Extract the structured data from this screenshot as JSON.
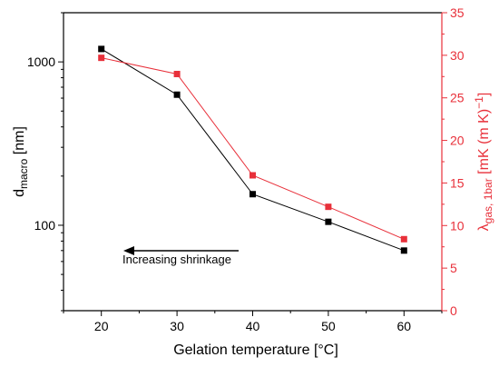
{
  "chart_data": {
    "type": "line",
    "x": [
      20,
      30,
      40,
      50,
      60
    ],
    "xlabel": "Gelation temperature [°C]",
    "xlim": [
      15,
      65
    ],
    "xticks": [
      20,
      30,
      40,
      50,
      60
    ],
    "ylabel_left": {
      "main": "d",
      "sub": "macro",
      "unit": " [nm]"
    },
    "ylim_left": [
      30,
      2000
    ],
    "yscale_left": "log",
    "yticks_left": [
      100,
      1000
    ],
    "ylabel_right": {
      "main": "λ",
      "sub": "gas, 1bar",
      "unit": " [mK (m K)",
      "sup": "−1",
      "close": "]"
    },
    "ylim_right": [
      0,
      35
    ],
    "yticks_right": [
      0,
      5,
      10,
      15,
      20,
      25,
      30,
      35
    ],
    "series": [
      {
        "axis": "left",
        "color": "#000000",
        "values": [
          1200,
          630,
          155,
          105,
          70
        ]
      },
      {
        "axis": "right",
        "color": "#e8303a",
        "values": [
          29.7,
          27.8,
          15.9,
          12.2,
          8.4
        ]
      }
    ],
    "annotation": {
      "text": "Increasing shrinkage",
      "arrow": "left"
    },
    "colors": {
      "left_axis": "#000000",
      "right_axis": "#e8303a"
    }
  }
}
